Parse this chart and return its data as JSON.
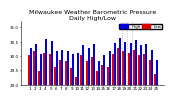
{
  "title": "Milwaukee Weather Barometric Pressure",
  "subtitle": "Daily High/Low",
  "high_color": "#0000dd",
  "low_color": "#dd0000",
  "legend_high": "High",
  "legend_low": "Low",
  "ylim": [
    29.0,
    31.2
  ],
  "yticks": [
    29.0,
    29.5,
    30.0,
    30.5,
    31.0
  ],
  "ytick_labels": [
    "29.0",
    "29.5",
    "30.0",
    "30.5",
    "31.0"
  ],
  "background_color": "#ffffff",
  "days": [
    1,
    2,
    3,
    4,
    5,
    6,
    7,
    8,
    9,
    10,
    11,
    12,
    13,
    14,
    15,
    16,
    17,
    18,
    19,
    20,
    21,
    22,
    23,
    24,
    25
  ],
  "highs": [
    30.28,
    30.42,
    30.08,
    30.58,
    30.52,
    30.18,
    30.22,
    30.18,
    30.08,
    30.1,
    30.38,
    30.28,
    30.42,
    29.82,
    30.05,
    30.18,
    30.45,
    30.62,
    30.48,
    30.45,
    30.55,
    30.38,
    30.42,
    30.22,
    29.88
  ],
  "lows": [
    30.05,
    30.18,
    29.48,
    30.12,
    30.08,
    29.62,
    29.88,
    29.82,
    29.58,
    29.28,
    30.02,
    29.82,
    29.98,
    29.48,
    29.68,
    29.62,
    30.08,
    30.28,
    30.18,
    30.12,
    30.22,
    30.02,
    30.08,
    29.88,
    29.38
  ],
  "vline_positions": [
    17.5,
    18.5,
    19.5
  ],
  "bar_width": 0.38,
  "title_fontsize": 4.5,
  "tick_fontsize": 3.0,
  "legend_fontsize": 3.0
}
